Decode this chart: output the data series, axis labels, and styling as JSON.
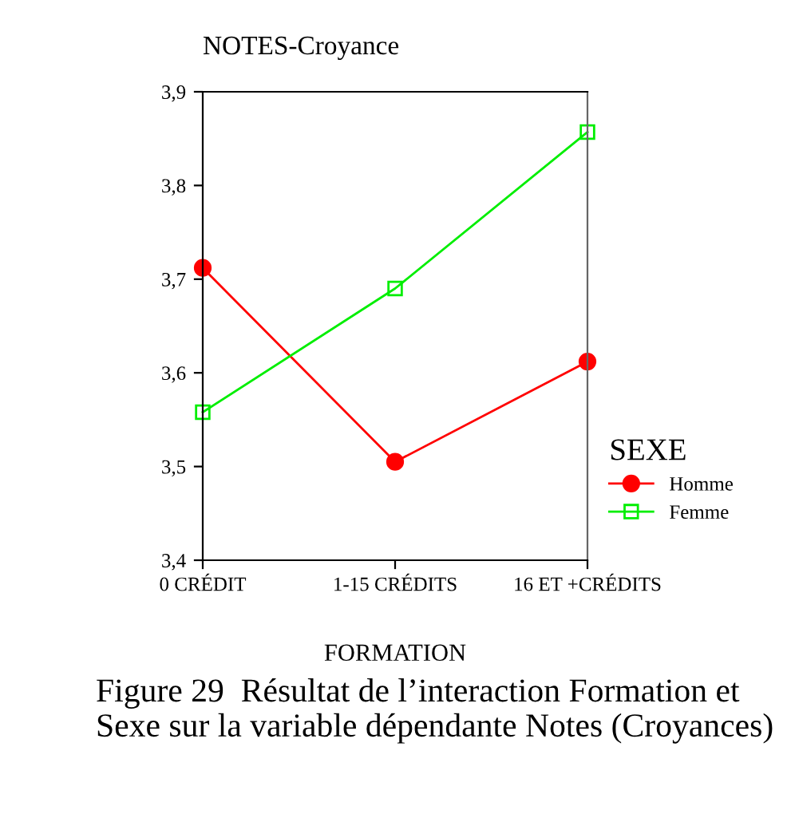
{
  "chart_data": {
    "type": "line",
    "title": "NOTES-Croyance",
    "xlabel": "FORMATION",
    "categories": [
      "0 CRÉDIT",
      "1-15 CRÉDITS",
      "16 ET +CRÉDITS"
    ],
    "series": [
      {
        "name": "Homme",
        "color": "#ff0000",
        "marker": "circle",
        "values": [
          3.712,
          3.505,
          3.612
        ]
      },
      {
        "name": "Femme",
        "color": "#00ee00",
        "marker": "square",
        "values": [
          3.558,
          3.69,
          3.857
        ]
      }
    ],
    "ylim": [
      3.4,
      3.9
    ],
    "yticks": [
      {
        "value": 3.4,
        "label": "3,4"
      },
      {
        "value": 3.5,
        "label": "3,5"
      },
      {
        "value": 3.6,
        "label": "3,6"
      },
      {
        "value": 3.7,
        "label": "3,7"
      },
      {
        "value": 3.8,
        "label": "3,8"
      },
      {
        "value": 3.9,
        "label": "3,9"
      }
    ],
    "legend": "right",
    "legend_title": "SEXE",
    "grid": false,
    "line_style": "solid",
    "annotations": [
      "Figure 29  Résultat de l’interaction Formation et Sexe sur la variable dépendante Notes (Croyances)"
    ]
  }
}
